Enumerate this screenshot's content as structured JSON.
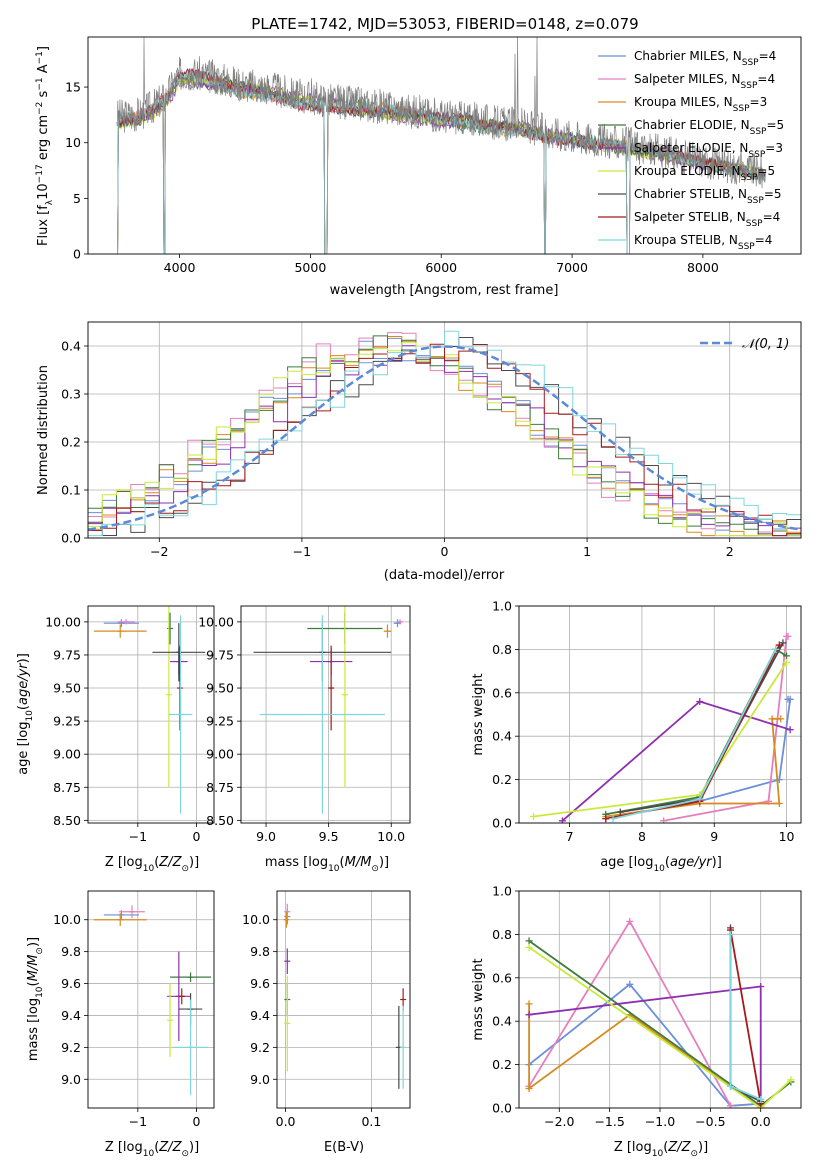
{
  "figure_title": "PLATE=1742, MJD=53053, FIBERID=0148, z=0.079",
  "colors": {
    "Chabrier MILES": "#6b8fd8",
    "Salpeter MILES": "#e57fc0",
    "Kroupa MILES": "#d68b1e",
    "Chabrier ELODIE": "#3f7a3f",
    "Salpeter ELODIE": "#8e2fae",
    "Kroupa ELODIE": "#c8ea3c",
    "Chabrier STELIB": "#4a4a4a",
    "Salpeter STELIB": "#a61a1a",
    "Kroupa STELIB": "#7fd6de",
    "gaussian": "#5b8ad6",
    "observed": "#808080"
  },
  "chart_data": [
    {
      "id": "spectrum",
      "type": "line",
      "xlabel": "wavelength [Angstrom, rest frame]",
      "ylabel": "Flux [f_λ 10^-17 erg cm^-2 s^-1 A^-1]",
      "xlim": [
        3300,
        8750
      ],
      "ylim": [
        0,
        19.5
      ],
      "xticks": [
        4000,
        5000,
        6000,
        7000,
        8000
      ],
      "yticks": [
        0,
        5,
        10,
        15
      ],
      "grid": false,
      "legend_position": "upper-right",
      "legend": [
        {
          "model": "Chabrier MILES",
          "nssp": "4"
        },
        {
          "model": "Salpeter MILES",
          "nssp": "4"
        },
        {
          "model": "Kroupa MILES",
          "nssp": "3"
        },
        {
          "model": "Chabrier ELODIE",
          "nssp": "5"
        },
        {
          "model": "Salpeter ELODIE",
          "nssp": "3"
        },
        {
          "model": "Kroupa ELODIE",
          "nssp": "5"
        },
        {
          "model": "Chabrier STELIB",
          "nssp": "5"
        },
        {
          "model": "Salpeter STELIB",
          "nssp": "4"
        },
        {
          "model": "Kroupa STELIB",
          "nssp": "4"
        }
      ],
      "continuum": {
        "x": [
          3550,
          3700,
          3800,
          3900,
          4000,
          4100,
          4300,
          4500,
          4700,
          4900,
          5100,
          5300,
          5500,
          5800,
          6000,
          6200,
          6400,
          6600,
          6800,
          7000,
          7200,
          7400,
          7600,
          7800,
          8000,
          8200,
          8400,
          8500
        ],
        "y": [
          12.4,
          12.6,
          13.3,
          14.2,
          16.2,
          16.3,
          15.8,
          15.2,
          14.9,
          14.2,
          13.9,
          13.6,
          13.3,
          12.8,
          12.4,
          12.2,
          11.8,
          11.6,
          11.0,
          10.6,
          10.2,
          9.9,
          9.4,
          8.9,
          8.4,
          7.9,
          7.5,
          7.2
        ]
      },
      "emission_lines_obs": [
        {
          "x": 3727,
          "peak": 19.5
        },
        {
          "x": 6563,
          "peak": 18.0
        },
        {
          "x": 6585,
          "peak": 19.5
        },
        {
          "x": 6716,
          "peak": 16.0
        },
        {
          "x": 6731,
          "peak": 19.5
        },
        {
          "x": 5007,
          "peak": 15.8
        }
      ],
      "model_gaps": [
        {
          "x0": 3500,
          "x1": 3530
        },
        {
          "x0": 3880,
          "x1": 3890
        },
        {
          "x0": 5110,
          "x1": 5130
        },
        {
          "x0": 6790,
          "x1": 6800
        },
        {
          "x0": 7420,
          "x1": 7440
        }
      ]
    },
    {
      "id": "residuals",
      "type": "histogram",
      "xlabel": "(data-model)/error",
      "ylabel": "Normed distribution",
      "xlim": [
        -2.5,
        2.5
      ],
      "ylim": [
        0,
        0.45
      ],
      "xticks": [
        -2,
        -1,
        0,
        1,
        2
      ],
      "yticks": [
        0.0,
        0.1,
        0.2,
        0.3,
        0.4
      ],
      "grid": true,
      "reference_label": "𝒩(0, 1)",
      "legend_position": "upper-right",
      "bin_width": 0.1,
      "series": [
        {
          "name": "Chabrier MILES",
          "shift": -0.35,
          "scale": 1.0
        },
        {
          "name": "Salpeter MILES",
          "shift": -0.45,
          "scale": 1.02
        },
        {
          "name": "Kroupa MILES",
          "shift": -0.4,
          "scale": 0.98
        },
        {
          "name": "Chabrier ELODIE",
          "shift": -0.42,
          "scale": 1.0
        },
        {
          "name": "Salpeter ELODIE",
          "shift": -0.3,
          "scale": 0.97
        },
        {
          "name": "Kroupa ELODIE",
          "shift": -0.42,
          "scale": 1.01
        },
        {
          "name": "Chabrier STELIB",
          "shift": 0.0,
          "scale": 1.0
        },
        {
          "name": "Salpeter STELIB",
          "shift": -0.05,
          "scale": 0.98
        },
        {
          "name": "Kroupa STELIB",
          "shift": 0.05,
          "scale": 1.03
        }
      ]
    },
    {
      "id": "age-Z",
      "type": "errorbar",
      "xlabel": "Z [log10(Z/Z⊙)]",
      "ylabel": "age  [log10(age/yr)]",
      "xlim": [
        -1.85,
        0.3
      ],
      "ylim": [
        8.48,
        10.12
      ],
      "xticks": [
        -1,
        0
      ],
      "yticks": [
        8.5,
        8.75,
        9.0,
        9.25,
        9.5,
        9.75,
        10.0
      ],
      "grid": true,
      "points": [
        {
          "model": "Chabrier MILES",
          "x": -1.28,
          "xerr": 0.3,
          "y": 9.99,
          "yerr": 0.03
        },
        {
          "model": "Salpeter MILES",
          "x": -1.2,
          "xerr": 0.15,
          "y": 10.0,
          "yerr": 0.02
        },
        {
          "model": "Kroupa MILES",
          "x": -1.3,
          "xerr": 0.45,
          "y": 9.93,
          "yerr": 0.05
        },
        {
          "model": "Chabrier ELODIE",
          "x": -0.45,
          "xerr": 0.0,
          "y": 9.95,
          "yerr": 0.12
        },
        {
          "model": "Salpeter ELODIE",
          "x": -0.3,
          "xerr": 0.15,
          "y": 9.7,
          "yerr": 0.1
        },
        {
          "model": "Kroupa ELODIE",
          "x": -0.47,
          "xerr": 0.0,
          "y": 9.45,
          "yerr": 0.7
        },
        {
          "model": "Chabrier STELIB",
          "x": -0.3,
          "xerr": 0.45,
          "y": 9.77,
          "yerr": 0.22
        },
        {
          "model": "Salpeter STELIB",
          "x": -0.28,
          "xerr": 0.0,
          "y": 9.5,
          "yerr": 0.32
        },
        {
          "model": "Kroupa STELIB",
          "x": -0.27,
          "xerr": 0.2,
          "y": 9.3,
          "yerr": 0.75
        }
      ]
    },
    {
      "id": "age-mass",
      "type": "errorbar",
      "xlabel": "mass [log10(M/M⊙)]",
      "ylabel": "",
      "xlim": [
        8.8,
        10.15
      ],
      "ylim": [
        8.48,
        10.12
      ],
      "xticks": [
        9.0,
        9.5,
        10.0
      ],
      "yticks": [
        8.5,
        8.75,
        9.0,
        9.25,
        9.5,
        9.75,
        10.0
      ],
      "grid": true,
      "points": [
        {
          "model": "Chabrier MILES",
          "x": 10.05,
          "xerr": 0.03,
          "y": 9.99,
          "yerr": 0.03
        },
        {
          "model": "Salpeter MILES",
          "x": 10.07,
          "xerr": 0.02,
          "y": 10.0,
          "yerr": 0.02
        },
        {
          "model": "Kroupa MILES",
          "x": 9.97,
          "xerr": 0.03,
          "y": 9.93,
          "yerr": 0.05
        },
        {
          "model": "Chabrier ELODIE",
          "x": 9.63,
          "xerr": 0.3,
          "y": 9.95,
          "yerr": 0.12
        },
        {
          "model": "Salpeter ELODIE",
          "x": 9.52,
          "xerr": 0.17,
          "y": 9.7,
          "yerr": 0.1
        },
        {
          "model": "Kroupa ELODIE",
          "x": 9.63,
          "xerr": 0.02,
          "y": 9.45,
          "yerr": 0.7
        },
        {
          "model": "Chabrier STELIB",
          "x": 9.45,
          "xerr": 0.55,
          "y": 9.77,
          "yerr": 0.22
        },
        {
          "model": "Salpeter STELIB",
          "x": 9.52,
          "xerr": 0.02,
          "y": 9.5,
          "yerr": 0.32
        },
        {
          "model": "Kroupa STELIB",
          "x": 9.45,
          "xerr": 0.5,
          "y": 9.3,
          "yerr": 0.75
        }
      ]
    },
    {
      "id": "weight-age",
      "type": "line",
      "xlabel": "age  [log10(age/yr)]",
      "ylabel": "mass weight",
      "xlim": [
        6.3,
        10.2
      ],
      "ylim": [
        0,
        1.0
      ],
      "xticks": [
        7,
        8,
        9,
        10
      ],
      "yticks": [
        0.0,
        0.2,
        0.4,
        0.6,
        0.8,
        1.0
      ],
      "grid": true,
      "series": [
        {
          "name": "Chabrier MILES",
          "x": [
            7.5,
            8.8,
            9.9,
            10.05,
            10.02
          ],
          "y": [
            0.02,
            0.1,
            0.2,
            0.57,
            0.57
          ]
        },
        {
          "name": "Salpeter MILES",
          "x": [
            8.3,
            9.75,
            10.0,
            10.02
          ],
          "y": [
            0.01,
            0.1,
            0.86,
            0.86
          ]
        },
        {
          "name": "Kroupa MILES",
          "x": [
            7.5,
            8.8,
            9.9,
            9.8,
            9.92
          ],
          "y": [
            0.03,
            0.09,
            0.09,
            0.48,
            0.48
          ]
        },
        {
          "name": "Chabrier ELODIE",
          "x": [
            7.5,
            8.8,
            9.85,
            10.0
          ],
          "y": [
            0.04,
            0.12,
            0.8,
            0.77
          ]
        },
        {
          "name": "Salpeter ELODIE",
          "x": [
            6.9,
            8.8,
            10.05
          ],
          "y": [
            0.01,
            0.56,
            0.43
          ]
        },
        {
          "name": "Kroupa ELODIE",
          "x": [
            6.5,
            8.8,
            10.0
          ],
          "y": [
            0.03,
            0.13,
            0.74
          ]
        },
        {
          "name": "Chabrier STELIB",
          "x": [
            7.7,
            8.8,
            9.95
          ],
          "y": [
            0.05,
            0.11,
            0.83
          ]
        },
        {
          "name": "Salpeter STELIB",
          "x": [
            7.5,
            8.8,
            9.9
          ],
          "y": [
            0.02,
            0.1,
            0.82
          ]
        },
        {
          "name": "Kroupa STELIB",
          "x": [
            7.6,
            8.8,
            9.85
          ],
          "y": [
            0.02,
            0.11,
            0.8
          ]
        }
      ]
    },
    {
      "id": "mass-Z",
      "type": "errorbar",
      "xlabel": "Z [log10(Z/Z⊙)]",
      "ylabel": "mass [log10(M/M⊙)]",
      "xlim": [
        -1.85,
        0.3
      ],
      "ylim": [
        8.82,
        10.18
      ],
      "xticks": [
        -1,
        0
      ],
      "yticks": [
        9.0,
        9.2,
        9.4,
        9.6,
        9.8,
        10.0
      ],
      "grid": true,
      "points": [
        {
          "model": "Chabrier MILES",
          "x": -1.28,
          "xerr": 0.3,
          "y": 10.03,
          "yerr": 0.03
        },
        {
          "model": "Salpeter MILES",
          "x": -1.1,
          "xerr": 0.22,
          "y": 10.05,
          "yerr": 0.04
        },
        {
          "model": "Kroupa MILES",
          "x": -1.3,
          "xerr": 0.45,
          "y": 10.0,
          "yerr": 0.04
        },
        {
          "model": "Chabrier ELODIE",
          "x": -0.1,
          "xerr": 0.35,
          "y": 9.64,
          "yerr": 0.03
        },
        {
          "model": "Salpeter ELODIE",
          "x": -0.3,
          "xerr": 0.2,
          "y": 9.52,
          "yerr": 0.28
        },
        {
          "model": "Kroupa ELODIE",
          "x": -0.45,
          "xerr": 0.0,
          "y": 9.37,
          "yerr": 0.23
        },
        {
          "model": "Chabrier STELIB",
          "x": -0.1,
          "xerr": 0.2,
          "y": 9.44,
          "yerr": 0.1
        },
        {
          "model": "Salpeter STELIB",
          "x": -0.25,
          "xerr": 0.0,
          "y": 9.52,
          "yerr": 0.05
        },
        {
          "model": "Kroupa STELIB",
          "x": -0.1,
          "xerr": 0.3,
          "y": 9.2,
          "yerr": 0.3
        }
      ]
    },
    {
      "id": "mass-EBV",
      "type": "errorbar",
      "xlabel": "E(B-V)",
      "ylabel": "",
      "xlim": [
        -0.01,
        0.145
      ],
      "ylim": [
        8.82,
        10.18
      ],
      "xticks": [
        0.0,
        0.1
      ],
      "yticks": [
        9.0,
        9.2,
        9.4,
        9.6,
        9.8,
        10.0
      ],
      "grid": true,
      "points": [
        {
          "model": "Chabrier MILES",
          "x": 0.002,
          "xerr": 0.0,
          "y": 10.02,
          "yerr": 0.05
        },
        {
          "model": "Salpeter MILES",
          "x": 0.002,
          "xerr": 0.0,
          "y": 10.05,
          "yerr": 0.05
        },
        {
          "model": "Kroupa MILES",
          "x": 0.001,
          "xerr": 0.0,
          "y": 10.0,
          "yerr": 0.05
        },
        {
          "model": "Chabrier ELODIE",
          "x": 0.002,
          "xerr": 0.0,
          "y": 9.5,
          "yerr": 0.1
        },
        {
          "model": "Salpeter ELODIE",
          "x": 0.002,
          "xerr": 0.0,
          "y": 9.74,
          "yerr": 0.08
        },
        {
          "model": "Kroupa ELODIE",
          "x": 0.002,
          "xerr": 0.0,
          "y": 9.35,
          "yerr": 0.3
        },
        {
          "model": "Chabrier STELIB",
          "x": 0.132,
          "xerr": 0.0,
          "y": 9.2,
          "yerr": 0.26
        },
        {
          "model": "Salpeter STELIB",
          "x": 0.137,
          "xerr": 0.0,
          "y": 9.5,
          "yerr": 0.07
        },
        {
          "model": "Kroupa STELIB",
          "x": 0.137,
          "xerr": 0.0,
          "y": 9.2,
          "yerr": 0.26
        }
      ]
    },
    {
      "id": "weight-Z",
      "type": "line",
      "xlabel": "Z [log10(Z/Z⊙)]",
      "ylabel": "mass weight",
      "xlim": [
        -2.4,
        0.4
      ],
      "ylim": [
        0,
        1.0
      ],
      "xticks": [
        -2.0,
        -1.5,
        -1.0,
        -0.5,
        0.0
      ],
      "yticks": [
        0.0,
        0.2,
        0.4,
        0.6,
        0.8,
        1.0
      ],
      "grid": true,
      "series": [
        {
          "name": "Chabrier MILES",
          "x": [
            -2.3,
            -1.3,
            -0.3,
            -0.0
          ],
          "y": [
            0.2,
            0.57,
            0.01,
            0.02
          ]
        },
        {
          "name": "Salpeter MILES",
          "x": [
            -2.3,
            -1.3,
            -0.3
          ],
          "y": [
            0.1,
            0.86,
            0.01
          ]
        },
        {
          "name": "Kroupa MILES",
          "x": [
            -2.3,
            -2.3,
            -1.3,
            0.0
          ],
          "y": [
            0.48,
            0.09,
            0.43,
            0.0
          ]
        },
        {
          "name": "Chabrier ELODIE",
          "x": [
            -2.3,
            0.0,
            0.3
          ],
          "y": [
            0.77,
            0.01,
            0.12
          ]
        },
        {
          "name": "Salpeter ELODIE",
          "x": [
            -2.3,
            0.0,
            0.0
          ],
          "y": [
            0.43,
            0.56,
            0.0
          ]
        },
        {
          "name": "Kroupa ELODIE",
          "x": [
            -2.3,
            0.0,
            0.3
          ],
          "y": [
            0.74,
            0.0,
            0.13
          ]
        },
        {
          "name": "Chabrier STELIB",
          "x": [
            -0.3,
            -0.3,
            0.0
          ],
          "y": [
            0.83,
            0.1,
            0.03
          ]
        },
        {
          "name": "Salpeter STELIB",
          "x": [
            -0.3,
            0.0
          ],
          "y": [
            0.82,
            0.02
          ]
        },
        {
          "name": "Kroupa STELIB",
          "x": [
            -0.3,
            -0.3,
            0.0
          ],
          "y": [
            0.8,
            0.1,
            0.04
          ]
        }
      ]
    }
  ]
}
